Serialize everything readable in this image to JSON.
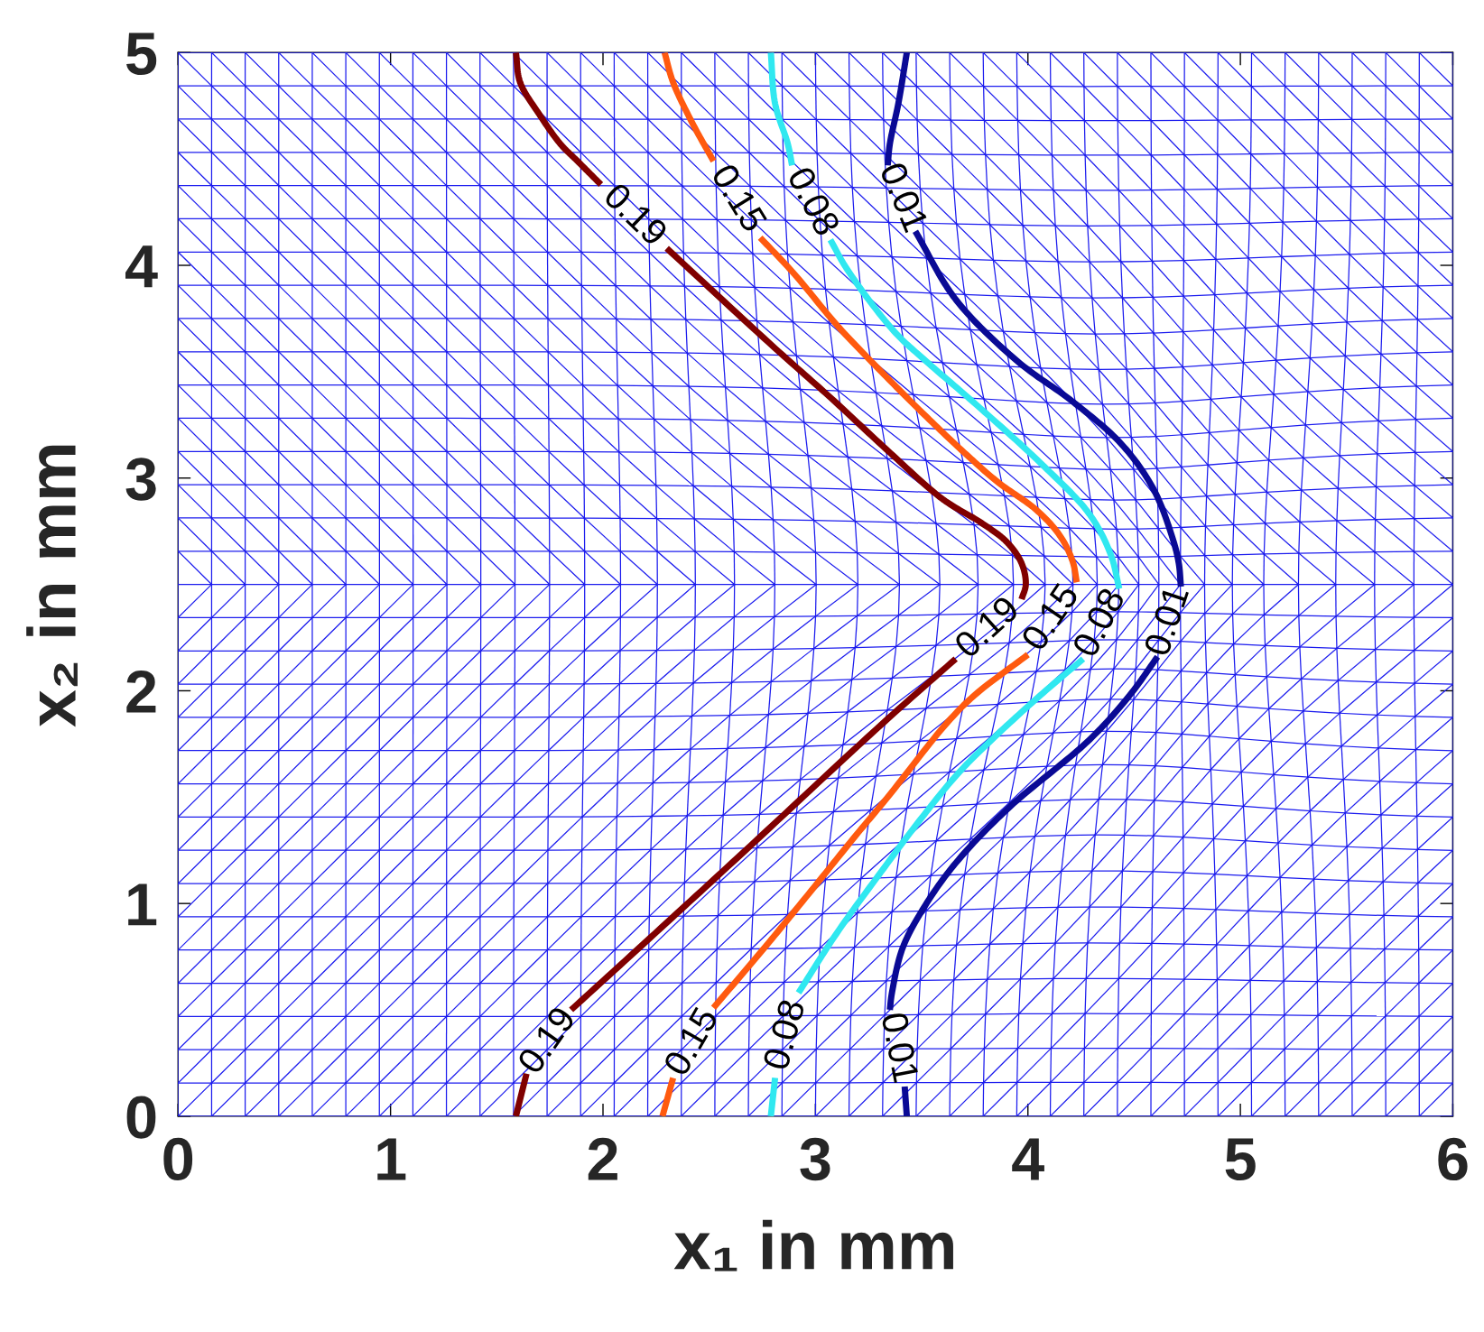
{
  "chart_data": {
    "type": "line",
    "xlabel": "x₁ in mm",
    "ylabel": "x₂ in mm",
    "xlim": [
      0,
      6
    ],
    "ylim": [
      0,
      5
    ],
    "xticks": [
      0,
      1,
      2,
      3,
      4,
      5,
      6
    ],
    "yticks": [
      0,
      1,
      2,
      3,
      4,
      5
    ],
    "series": [
      {
        "color": "#0a0a95",
        "x": [
          3.43,
          3.39,
          3.35,
          3.34,
          3.4,
          3.47,
          3.66,
          3.95,
          4.21,
          4.44,
          4.59,
          4.68,
          4.71,
          4.72,
          4.66,
          4.61,
          4.48,
          4.29,
          3.91,
          3.66,
          3.51,
          3.41,
          3.36,
          3.35,
          3.38,
          3.42,
          3.43
        ],
        "values": [
          5,
          4.76,
          4.57,
          4.47,
          null,
          4.16,
          3.84,
          3.55,
          3.36,
          3.16,
          2.95,
          2.72,
          2.6,
          2.49,
          null,
          2.16,
          1.98,
          1.77,
          1.45,
          1.19,
          0.98,
          0.79,
          0.58,
          0.5,
          null,
          0.14,
          0
        ]
      },
      {
        "color": "#30e8f0",
        "x": [
          2.79,
          2.81,
          2.87,
          2.89,
          2.98,
          3.07,
          3.15,
          3.37,
          3.52,
          3.74,
          4.06,
          4.29,
          4.39,
          4.43,
          4.34,
          4.26,
          4.06,
          3.83,
          3.67,
          3.49,
          3.31,
          3.1,
          2.92,
          2.87,
          2.81,
          2.79
        ],
        "values": [
          5,
          4.76,
          4.57,
          4.47,
          null,
          4.12,
          3.98,
          3.69,
          3.55,
          3.36,
          3.07,
          2.83,
          2.64,
          2.48,
          null,
          2.15,
          1.98,
          1.77,
          1.61,
          1.39,
          1.15,
          0.86,
          0.58,
          null,
          0.18,
          0
        ]
      },
      {
        "color": "#ff5a0f",
        "x": [
          2.29,
          2.33,
          2.42,
          2.52,
          2.63,
          2.74,
          2.9,
          3.1,
          3.31,
          3.5,
          3.7,
          3.86,
          4.04,
          4.15,
          4.21,
          4.23,
          4.11,
          4.0,
          3.75,
          3.62,
          3.34,
          3.19,
          2.98,
          2.75,
          2.52,
          2.42,
          2.33,
          2.28
        ],
        "values": [
          5,
          4.86,
          4.67,
          4.49,
          null,
          4.13,
          3.96,
          3.72,
          3.5,
          3.31,
          3.12,
          2.98,
          2.85,
          2.73,
          2.61,
          2.51,
          null,
          2.17,
          1.98,
          1.85,
          1.5,
          1.32,
          1.06,
          0.78,
          0.51,
          null,
          0.18,
          0
        ]
      },
      {
        "color": "#800000",
        "x": [
          1.59,
          1.61,
          1.7,
          1.8,
          1.88,
          1.99,
          2.15,
          2.3,
          2.81,
          3.08,
          3.35,
          3.6,
          3.78,
          3.9,
          3.97,
          3.99,
          3.97,
          3.81,
          3.66,
          3.32,
          2.66,
          2.3,
          1.85,
          1.75,
          1.64,
          1.59
        ],
        "values": [
          5,
          4.86,
          4.71,
          4.57,
          4.49,
          4.38,
          null,
          4.08,
          3.61,
          3.37,
          3.12,
          2.9,
          2.79,
          2.7,
          2.6,
          2.5,
          2.43,
          null,
          2.15,
          1.85,
          1.24,
          0.91,
          0.5,
          null,
          0.2,
          0
        ]
      }
    ],
    "annotations": [
      {
        "text": "0.01",
        "x": 3.47,
        "y": 4.16
      },
      {
        "text": "0.01",
        "x": 4.61,
        "y": 2.16
      },
      {
        "text": "0.01",
        "x": 3.42,
        "y": 0.14
      },
      {
        "text": "0.08",
        "x": 3.07,
        "y": 4.12
      },
      {
        "text": "0.08",
        "x": 4.26,
        "y": 2.15
      },
      {
        "text": "0.08",
        "x": 2.81,
        "y": 0.18
      },
      {
        "text": "0.15",
        "x": 2.74,
        "y": 4.13
      },
      {
        "text": "0.15",
        "x": 4.0,
        "y": 2.17
      },
      {
        "text": "0.15",
        "x": 2.33,
        "y": 0.18
      },
      {
        "text": "0.19",
        "x": 2.3,
        "y": 4.08
      },
      {
        "text": "0.19",
        "x": 3.66,
        "y": 2.15
      },
      {
        "text": "0.19",
        "x": 1.64,
        "y": 0.2
      }
    ]
  }
}
